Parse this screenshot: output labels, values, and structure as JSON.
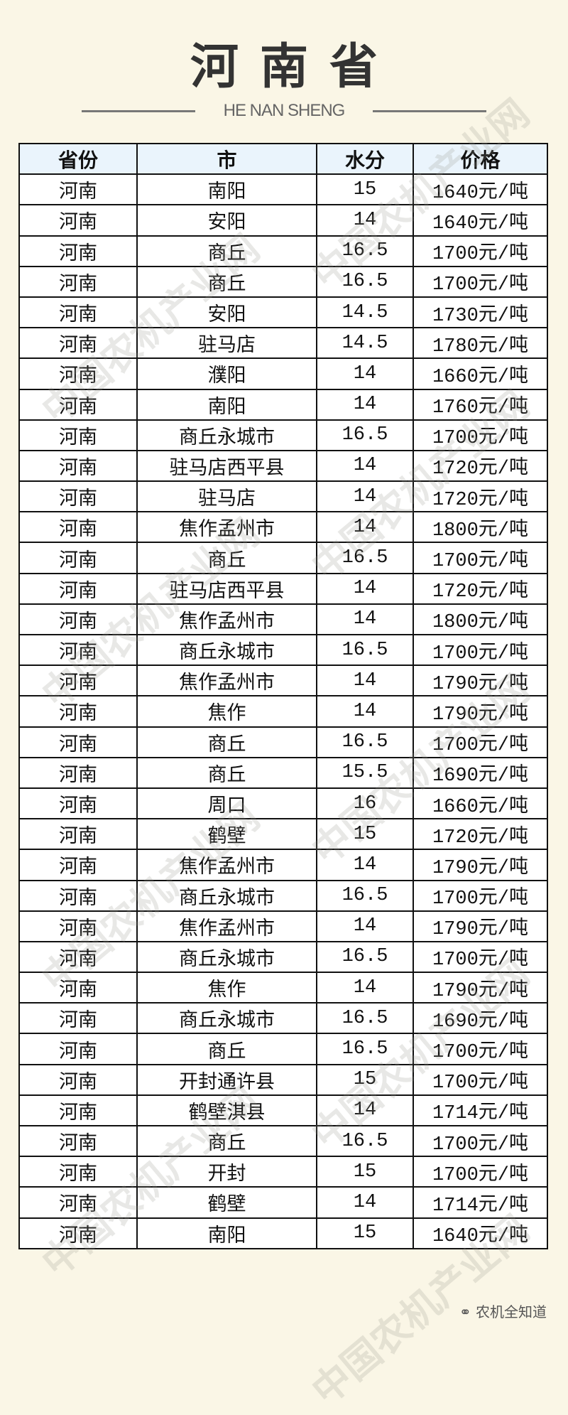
{
  "title": "河南省",
  "subtitle": "HE NAN SHENG",
  "table": {
    "headers": [
      "省份",
      "市",
      "水分",
      "价格"
    ],
    "rows": [
      [
        "河南",
        "南阳",
        "15",
        "1640元/吨"
      ],
      [
        "河南",
        "安阳",
        "14",
        "1640元/吨"
      ],
      [
        "河南",
        "商丘",
        "16.5",
        "1700元/吨"
      ],
      [
        "河南",
        "商丘",
        "16.5",
        "1700元/吨"
      ],
      [
        "河南",
        "安阳",
        "14.5",
        "1730元/吨"
      ],
      [
        "河南",
        "驻马店",
        "14.5",
        "1780元/吨"
      ],
      [
        "河南",
        "濮阳",
        "14",
        "1660元/吨"
      ],
      [
        "河南",
        "南阳",
        "14",
        "1760元/吨"
      ],
      [
        "河南",
        "商丘永城市",
        "16.5",
        "1700元/吨"
      ],
      [
        "河南",
        "驻马店西平县",
        "14",
        "1720元/吨"
      ],
      [
        "河南",
        "驻马店",
        "14",
        "1720元/吨"
      ],
      [
        "河南",
        "焦作孟州市",
        "14",
        "1800元/吨"
      ],
      [
        "河南",
        "商丘",
        "16.5",
        "1700元/吨"
      ],
      [
        "河南",
        "驻马店西平县",
        "14",
        "1720元/吨"
      ],
      [
        "河南",
        "焦作孟州市",
        "14",
        "1800元/吨"
      ],
      [
        "河南",
        "商丘永城市",
        "16.5",
        "1700元/吨"
      ],
      [
        "河南",
        "焦作孟州市",
        "14",
        "1790元/吨"
      ],
      [
        "河南",
        "焦作",
        "14",
        "1790元/吨"
      ],
      [
        "河南",
        "商丘",
        "16.5",
        "1700元/吨"
      ],
      [
        "河南",
        "商丘",
        "15.5",
        "1690元/吨"
      ],
      [
        "河南",
        "周口",
        "16",
        "1660元/吨"
      ],
      [
        "河南",
        "鹤壁",
        "15",
        "1720元/吨"
      ],
      [
        "河南",
        "焦作孟州市",
        "14",
        "1790元/吨"
      ],
      [
        "河南",
        "商丘永城市",
        "16.5",
        "1700元/吨"
      ],
      [
        "河南",
        "焦作孟州市",
        "14",
        "1790元/吨"
      ],
      [
        "河南",
        "商丘永城市",
        "16.5",
        "1700元/吨"
      ],
      [
        "河南",
        "焦作",
        "14",
        "1790元/吨"
      ],
      [
        "河南",
        "商丘永城市",
        "16.5",
        "1690元/吨"
      ],
      [
        "河南",
        "商丘",
        "16.5",
        "1700元/吨"
      ],
      [
        "河南",
        "开封通许县",
        "15",
        "1700元/吨"
      ],
      [
        "河南",
        "鹤壁淇县",
        "14",
        "1714元/吨"
      ],
      [
        "河南",
        "商丘",
        "16.5",
        "1700元/吨"
      ],
      [
        "河南",
        "开封",
        "15",
        "1700元/吨"
      ],
      [
        "河南",
        "鹤壁",
        "14",
        "1714元/吨"
      ],
      [
        "河南",
        "南阳",
        "15",
        "1640元/吨"
      ]
    ]
  },
  "watermark": "中国农机产业网",
  "footer": {
    "icon": "wechat-icon",
    "text": "农机全知道"
  }
}
